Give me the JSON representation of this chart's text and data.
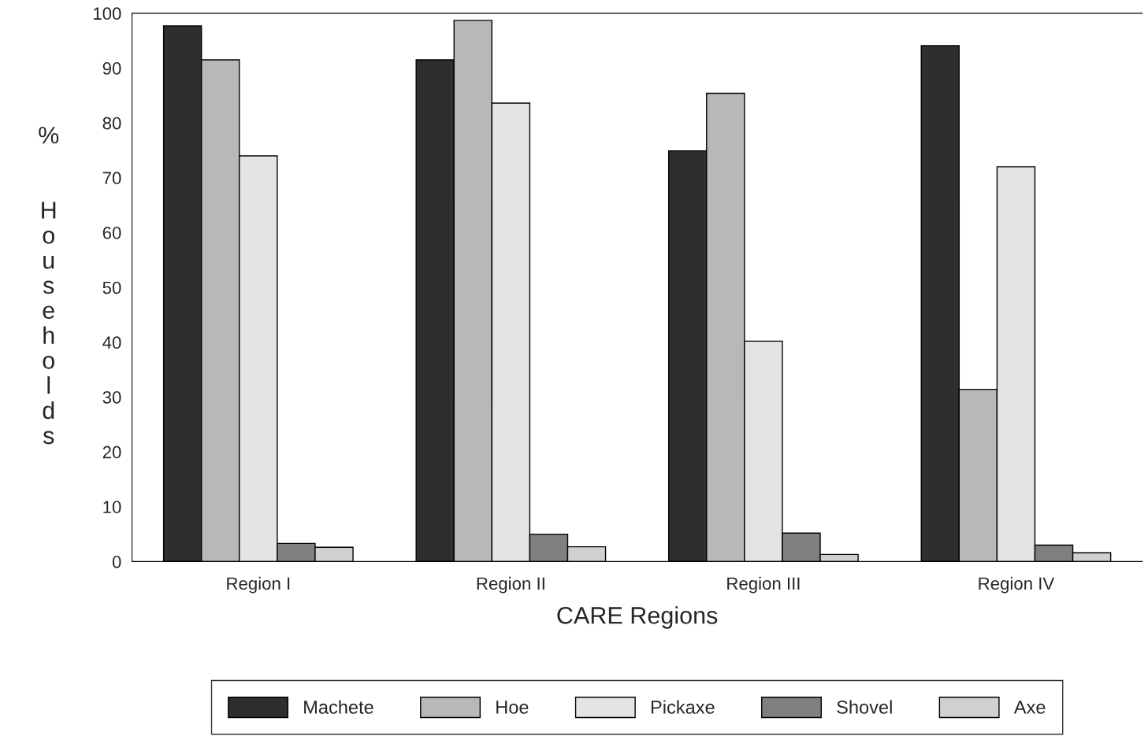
{
  "chart_data": {
    "type": "bar",
    "xlabel": "CARE Regions",
    "ylabel": "% Households",
    "categories": [
      "Region I",
      "Region II",
      "Region III",
      "Region IV"
    ],
    "series": [
      {
        "name": "Machete",
        "color": "#2e2e2e",
        "values": [
          97.7,
          91.5,
          74.9,
          94.1
        ]
      },
      {
        "name": "Hoe",
        "color": "#b8b8b8",
        "values": [
          91.5,
          98.7,
          85.4,
          31.4
        ]
      },
      {
        "name": "Pickaxe",
        "color": "#e4e4e4",
        "values": [
          74.0,
          83.6,
          40.2,
          72.0
        ]
      },
      {
        "name": "Shovel",
        "color": "#808080",
        "values": [
          3.3,
          5.0,
          5.2,
          3.0
        ]
      },
      {
        "name": "Axe",
        "color": "#d0d0d0",
        "values": [
          2.6,
          2.7,
          1.3,
          1.6
        ]
      }
    ],
    "ylim": [
      0,
      100
    ],
    "yticks": [
      0,
      10,
      20,
      30,
      40,
      50,
      60,
      70,
      80,
      90,
      100
    ],
    "grid": false,
    "legend": "bottom"
  }
}
